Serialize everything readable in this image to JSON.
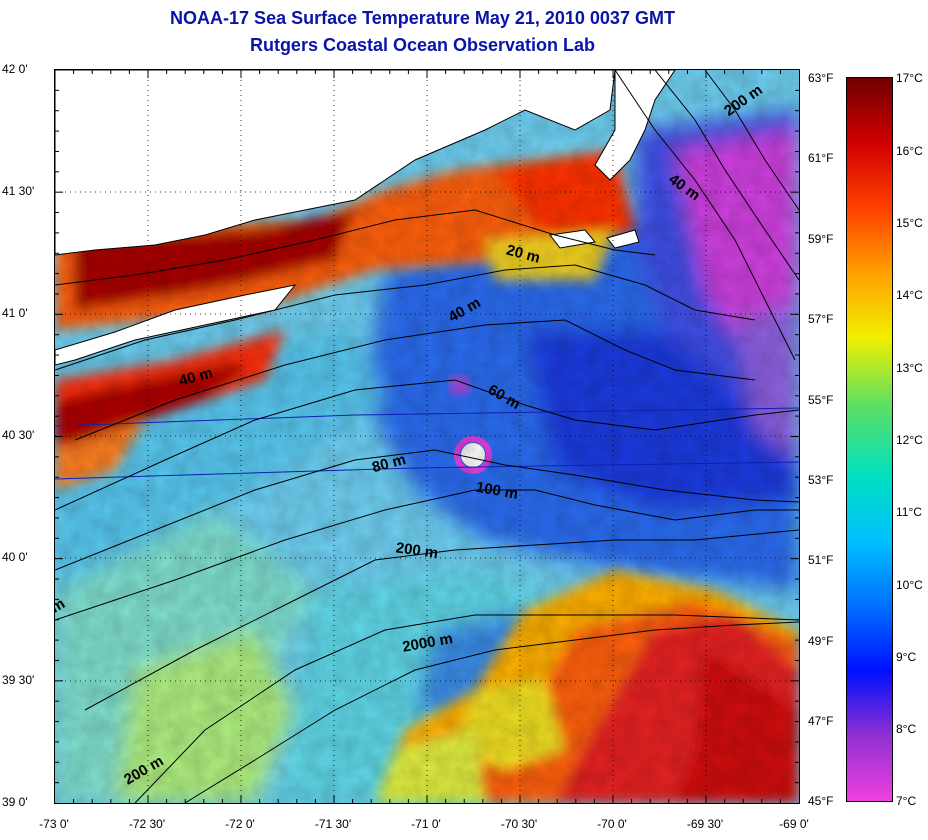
{
  "header": {
    "title": "NOAA-17 Sea Surface Temperature May 21, 2010 0037 GMT",
    "subtitle": "Rutgers Coastal Ocean Observation Lab"
  },
  "axes": {
    "lat_ticks": [
      "42 0'",
      "41 30'",
      "41 0'",
      "40 30'",
      "40 0'",
      "39 30'",
      "39 0'"
    ],
    "lon_ticks": [
      "-73 0'",
      "-72 30'",
      "-72 0'",
      "-71 30'",
      "-71 0'",
      "-70 30'",
      "-70 0'",
      "-69 30'",
      "-69 0'"
    ]
  },
  "colorbar": {
    "fahrenheit_labels": [
      "63°F",
      "61°F",
      "59°F",
      "57°F",
      "55°F",
      "53°F",
      "51°F",
      "49°F",
      "47°F",
      "45°F"
    ],
    "celsius_labels": [
      "17°C",
      "16°C",
      "15°C",
      "14°C",
      "13°C",
      "12°C",
      "11°C",
      "10°C",
      "9°C",
      "8°C",
      "7°C"
    ],
    "colors": [
      "#f040e0",
      "#9030d0",
      "#0010ff",
      "#0070ff",
      "#00c0ff",
      "#00e0c0",
      "#60e060",
      "#f0f000",
      "#ffa000",
      "#ff4000",
      "#d00000",
      "#700000"
    ]
  },
  "depth_labels": [
    "200 m",
    "40 m",
    "20 m",
    "40 m",
    "40 m",
    "60 m",
    "80 m",
    "100 m",
    "200 m",
    "2000 m",
    "200 m",
    "m"
  ]
}
